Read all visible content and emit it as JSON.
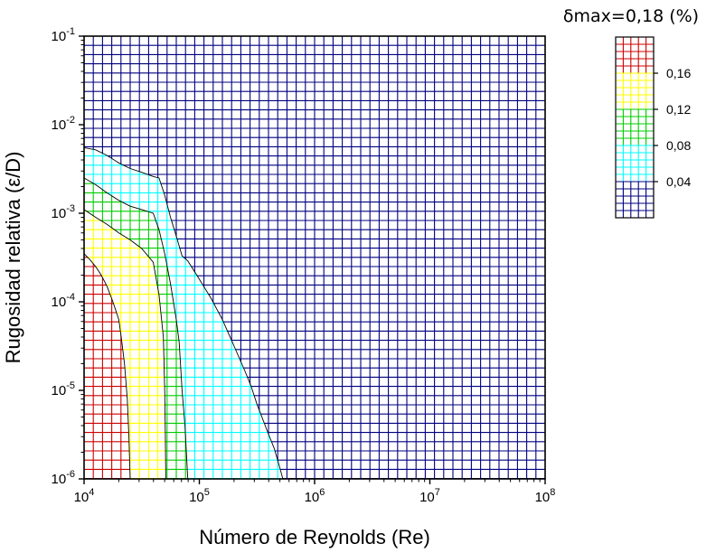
{
  "chart_data": {
    "type": "heatmap",
    "title": "",
    "xlabel": "Número de Reynolds (Re)",
    "ylabel": "Rugosidad relativa (ε/D)",
    "x_scale": "log",
    "y_scale": "log",
    "xlim": [
      10000,
      100000000
    ],
    "ylim": [
      1e-06,
      0.1
    ],
    "x_ticks": [
      {
        "base": "10",
        "exp": "4"
      },
      {
        "base": "10",
        "exp": "5"
      },
      {
        "base": "10",
        "exp": "6"
      },
      {
        "base": "10",
        "exp": "7"
      },
      {
        "base": "10",
        "exp": "8"
      }
    ],
    "y_ticks": [
      {
        "base": "10",
        "exp": "-6"
      },
      {
        "base": "10",
        "exp": "-5"
      },
      {
        "base": "10",
        "exp": "-4"
      },
      {
        "base": "10",
        "exp": "-3"
      },
      {
        "base": "10",
        "exp": "-2"
      },
      {
        "base": "10",
        "exp": "-1"
      }
    ],
    "grid": true,
    "legend": {
      "title": "δmax=0,18 (%)",
      "placement": "right",
      "ticks": [
        "0,04",
        "0,08",
        "0,12",
        "0,16"
      ],
      "bands": [
        {
          "range": [
            0.16,
            0.18
          ],
          "color": "#cc0000"
        },
        {
          "range": [
            0.12,
            0.16
          ],
          "color": "#ffff00"
        },
        {
          "range": [
            0.08,
            0.12
          ],
          "color": "#00cc00"
        },
        {
          "range": [
            0.04,
            0.08
          ],
          "color": "#00ffff"
        },
        {
          "range": [
            0.0,
            0.04
          ],
          "color": "#000080"
        }
      ]
    },
    "contours": [
      {
        "level": 0.04,
        "color": "#00ffff",
        "points": [
          [
            10000,
            0.0055
          ],
          [
            12600,
            0.0052
          ],
          [
            15800,
            0.0045
          ],
          [
            20000,
            0.0037
          ],
          [
            25100,
            0.0032
          ],
          [
            31600,
            0.0029
          ],
          [
            39800,
            0.0026
          ],
          [
            44700,
            0.0025
          ],
          [
            50100,
            0.0016
          ],
          [
            56200,
            0.0009
          ],
          [
            63100,
            0.00055
          ],
          [
            70800,
            0.00033
          ],
          [
            79400,
            0.00029
          ],
          [
            100000,
            0.00018
          ],
          [
            125900,
            0.00011
          ],
          [
            158500,
            6.3e-05
          ],
          [
            199500,
            3.2e-05
          ],
          [
            251200,
            1.6e-05
          ],
          [
            281800,
            1.1e-05
          ],
          [
            316200,
            7e-06
          ],
          [
            398100,
            3.2e-06
          ],
          [
            446700,
            2.2e-06
          ],
          [
            501200,
            1.3e-06
          ],
          [
            530900,
            1e-06
          ]
        ]
      },
      {
        "level": 0.08,
        "color": "#00cc00",
        "points": [
          [
            10000,
            0.0025
          ],
          [
            12600,
            0.0021
          ],
          [
            15800,
            0.0017
          ],
          [
            20000,
            0.0014
          ],
          [
            25100,
            0.0012
          ],
          [
            31600,
            0.0011
          ],
          [
            39800,
            0.001
          ],
          [
            44700,
            0.00065
          ],
          [
            50100,
            0.00035
          ],
          [
            56200,
            0.00016
          ],
          [
            63100,
            6.3e-05
          ],
          [
            66800,
            3.5e-05
          ],
          [
            70800,
            1e-05
          ],
          [
            75000,
            4e-06
          ],
          [
            79400,
            1e-06
          ]
        ]
      },
      {
        "level": 0.12,
        "color": "#ffff00",
        "points": [
          [
            10000,
            0.0011
          ],
          [
            12600,
            0.0009
          ],
          [
            15800,
            0.00075
          ],
          [
            20000,
            0.0006
          ],
          [
            25100,
            0.0005
          ],
          [
            31600,
            0.0004
          ],
          [
            39800,
            0.00028
          ],
          [
            44700,
            0.00012
          ],
          [
            48700,
            4e-05
          ],
          [
            50100,
            1e-05
          ],
          [
            50700,
            3e-06
          ],
          [
            51200,
            1e-06
          ]
        ]
      },
      {
        "level": 0.16,
        "color": "#cc0000",
        "points": [
          [
            10000,
            0.00035
          ],
          [
            11200,
            0.0003
          ],
          [
            12600,
            0.00025
          ],
          [
            14100,
            0.0002
          ],
          [
            15800,
            0.00015
          ],
          [
            17800,
            0.0001
          ],
          [
            20000,
            6.3e-05
          ],
          [
            21000,
            4e-05
          ],
          [
            22400,
            2e-05
          ],
          [
            23700,
            8e-06
          ],
          [
            24500,
            3e-06
          ],
          [
            25100,
            1e-06
          ]
        ]
      }
    ]
  }
}
